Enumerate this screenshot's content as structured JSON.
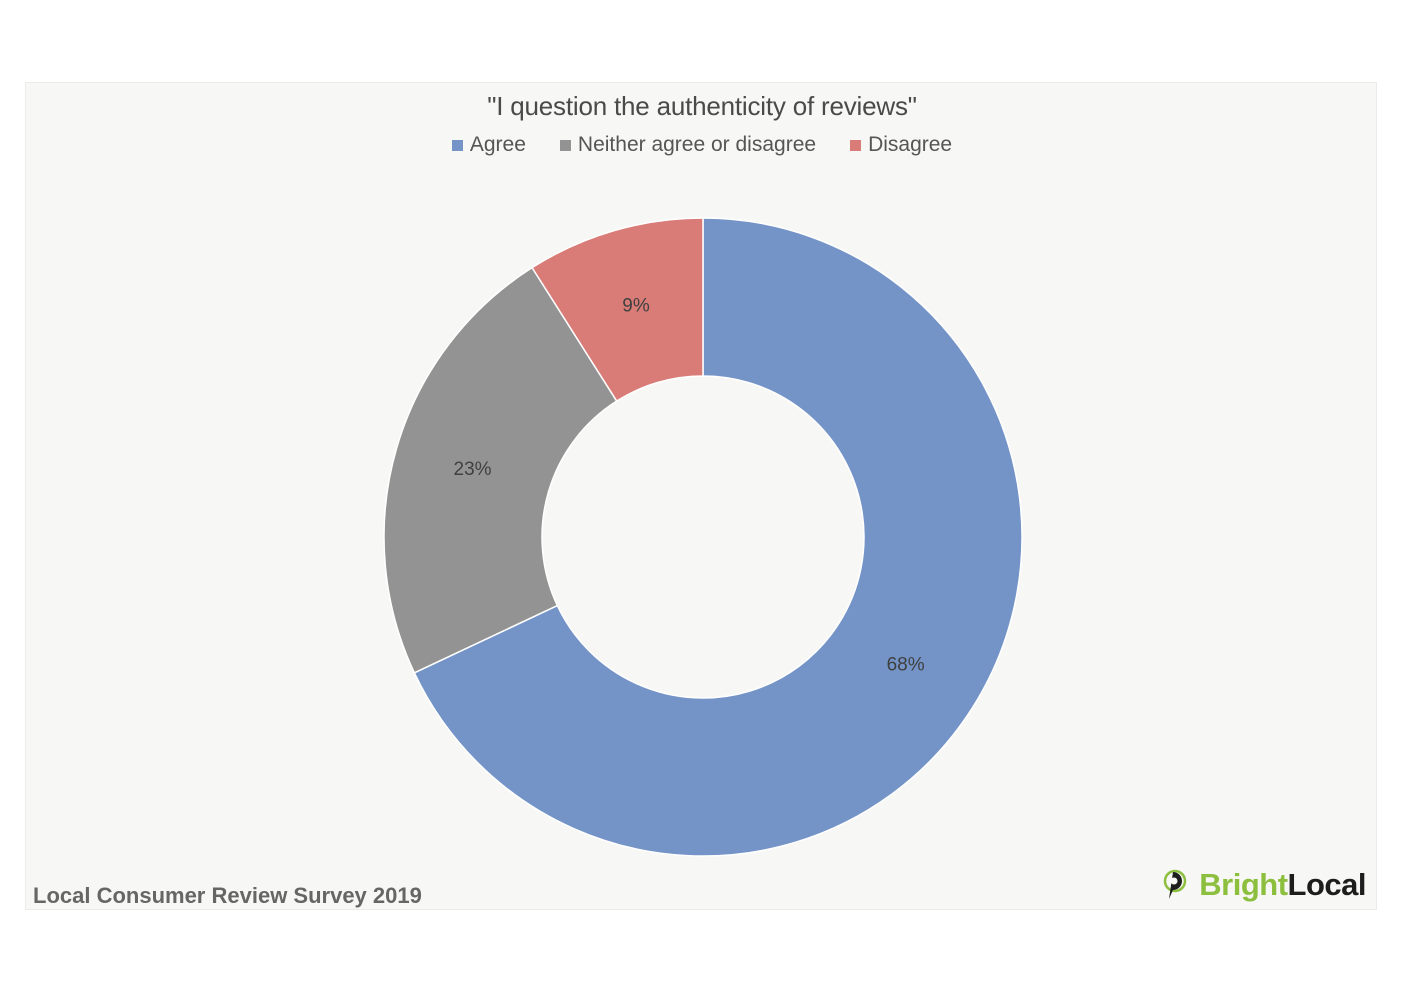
{
  "chart_data": {
    "type": "pie",
    "title": "\"I question the authenticity of reviews\"",
    "categories": [
      "Agree",
      "Neither agree or disagree",
      "Disagree"
    ],
    "values": [
      68,
      23,
      9
    ],
    "labels": [
      "68%",
      "23%",
      "9%"
    ],
    "colors": [
      "#7494c8",
      "#939393",
      "#d97c78"
    ],
    "donut": true,
    "legend_position": "top"
  },
  "footer": {
    "source": "Local Consumer Review Survey 2019",
    "logo_bright": "Bright",
    "logo_local": "Local"
  }
}
